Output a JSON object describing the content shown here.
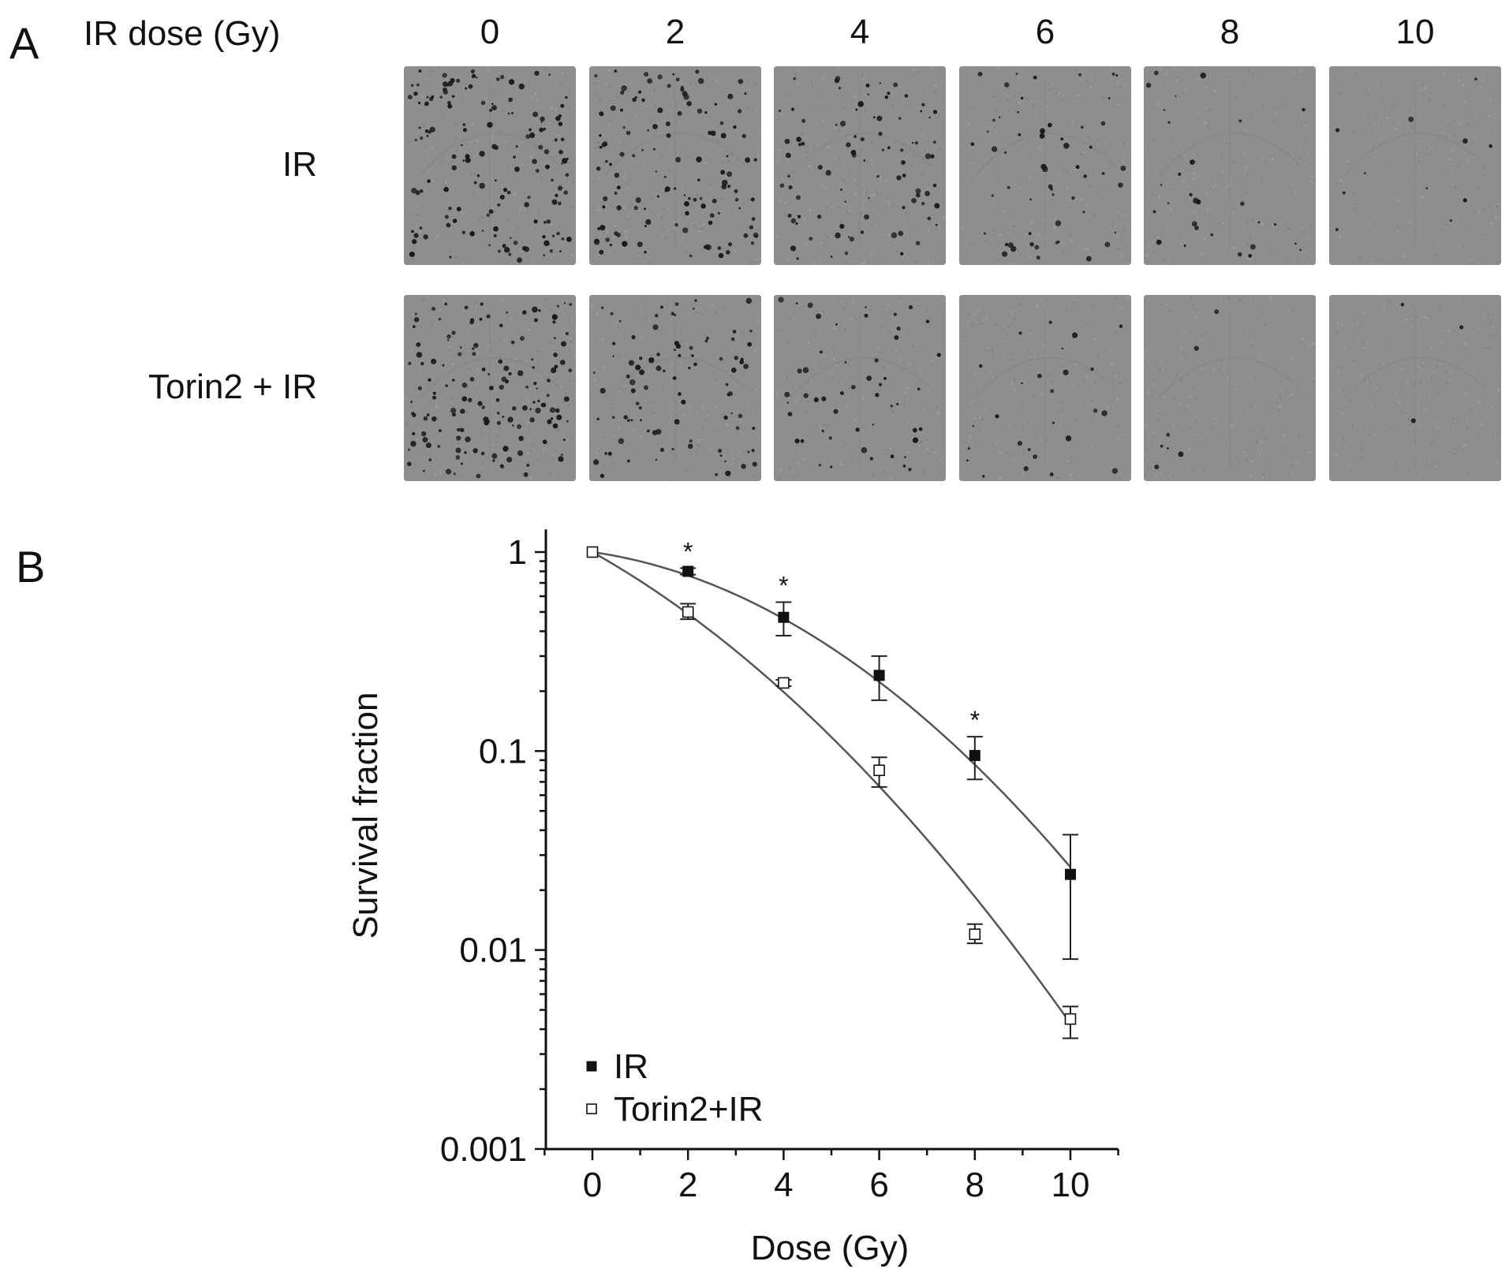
{
  "panel_a": {
    "letter": "A",
    "header_label": "IR dose (Gy)",
    "doses": [
      "0",
      "2",
      "4",
      "6",
      "8",
      "10"
    ],
    "rows": [
      {
        "label": "IR",
        "colony_density": [
          1.0,
          0.8,
          0.47,
          0.24,
          0.095,
          0.024
        ]
      },
      {
        "label": "Torin2 + IR",
        "colony_density": [
          1.0,
          0.5,
          0.22,
          0.08,
          0.012,
          0.0045
        ]
      }
    ],
    "well_colors": {
      "background": "#8e8e8e",
      "colony": "#1a1a1a"
    }
  },
  "panel_b": {
    "letter": "B"
  },
  "chart_data": {
    "type": "scatter",
    "xlabel": "Dose (Gy)",
    "ylabel": "Survival fraction",
    "xlim": [
      -1,
      11
    ],
    "ylim": [
      0.001,
      1.3
    ],
    "y_scale": "log",
    "x_ticks": [
      0,
      2,
      4,
      6,
      8,
      10
    ],
    "y_ticks": [
      0.001,
      0.01,
      0.1,
      1
    ],
    "y_tick_labels": [
      "0.001",
      "0.01",
      "0.1",
      "1"
    ],
    "grid": false,
    "legend_position": "bottom-left",
    "series": [
      {
        "name": "IR",
        "marker": "filled-square",
        "color": "#111111",
        "x": [
          0,
          2,
          4,
          6,
          8,
          10
        ],
        "y": [
          1.0,
          0.8,
          0.47,
          0.24,
          0.095,
          0.024
        ],
        "err_low": [
          1.0,
          0.77,
          0.38,
          0.18,
          0.072,
          0.009
        ],
        "err_high": [
          1.0,
          0.83,
          0.56,
          0.3,
          0.118,
          0.038
        ],
        "significance": [
          "",
          "*",
          "*",
          "",
          "*",
          ""
        ],
        "fit": {
          "alpha": 0.0785,
          "beta": 0.02862
        }
      },
      {
        "name": "Torin2+IR",
        "marker": "open-square",
        "color": "#111111",
        "x": [
          0,
          2,
          4,
          6,
          8,
          10
        ],
        "y": [
          1.0,
          0.5,
          0.22,
          0.08,
          0.012,
          0.0045
        ],
        "err_low": [
          1.0,
          0.46,
          0.212,
          0.066,
          0.0108,
          0.0036
        ],
        "err_high": [
          1.0,
          0.55,
          0.228,
          0.093,
          0.0135,
          0.0052
        ],
        "fit": {
          "alpha": 0.3109,
          "beta": 0.02346
        }
      }
    ]
  }
}
